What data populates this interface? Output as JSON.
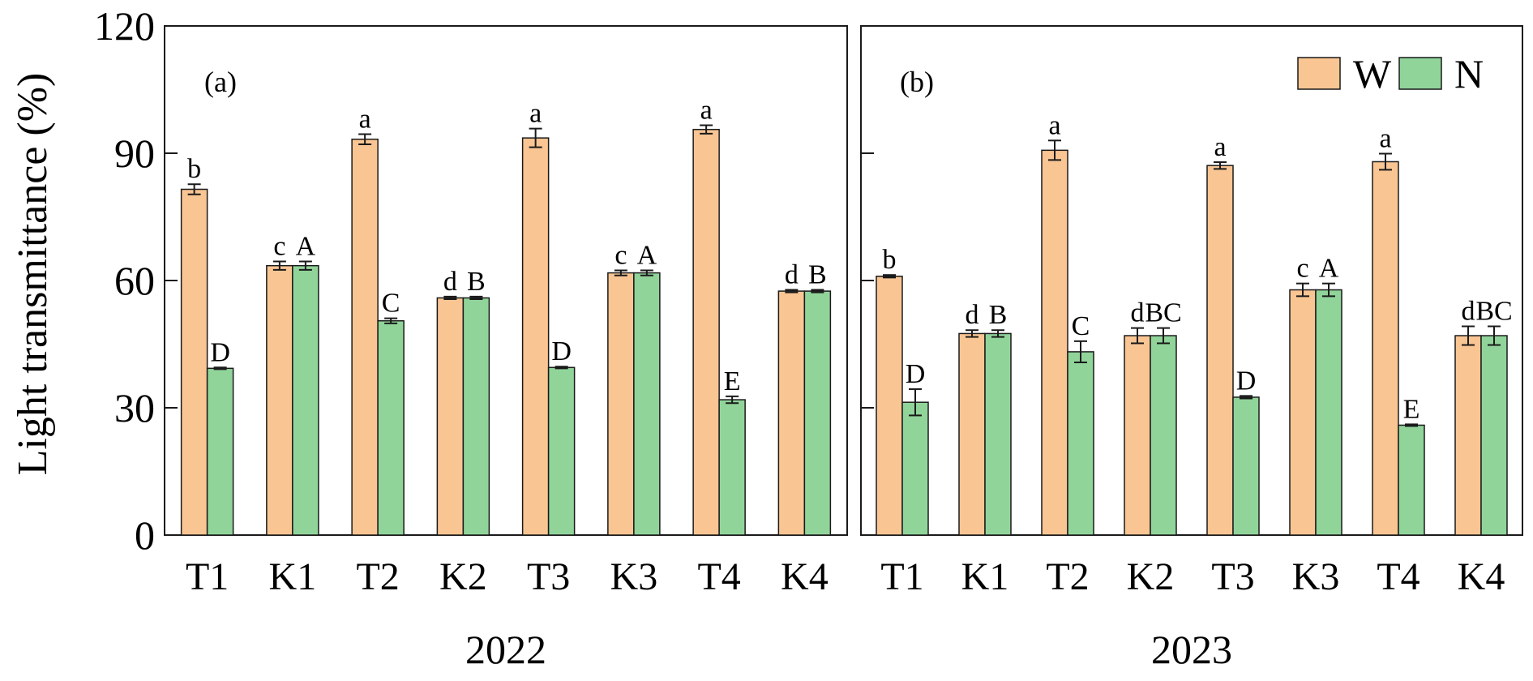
{
  "chart_data": {
    "type": "bar",
    "ylabel": "Light transmittance (%)",
    "ylim": [
      0,
      120
    ],
    "yticks": [
      0,
      30,
      60,
      90,
      120
    ],
    "legend": [
      {
        "key": "W",
        "label": "W",
        "color": "#f9c593"
      },
      {
        "key": "N",
        "label": "N",
        "color": "#90d49a"
      }
    ],
    "legend_position": "top-right of panel (b)",
    "panels": [
      {
        "label": "(a)",
        "xlabel": "2022",
        "categories": [
          "T1",
          "K1",
          "T2",
          "K2",
          "T3",
          "K3",
          "T4",
          "K4"
        ],
        "series": [
          {
            "name": "W",
            "values": [
              81.5,
              63.5,
              93.3,
              55.9,
              93.6,
              61.8,
              95.6,
              57.5
            ],
            "errors": [
              1.2,
              1.0,
              1.2,
              0.3,
              2.2,
              0.6,
              1.0,
              0.3
            ],
            "letters": [
              "b",
              "c",
              "a",
              "d",
              "a",
              "c",
              "a",
              "d"
            ]
          },
          {
            "name": "N",
            "values": [
              39.3,
              63.5,
              50.5,
              55.9,
              39.5,
              61.8,
              31.9,
              57.5
            ],
            "errors": [
              0.2,
              1.0,
              0.6,
              0.3,
              0.2,
              0.6,
              0.8,
              0.3
            ],
            "letters": [
              "D",
              "A",
              "C",
              "B",
              "D",
              "A",
              "E",
              "B"
            ]
          }
        ]
      },
      {
        "label": "(b)",
        "xlabel": "2023",
        "categories": [
          "T1",
          "K1",
          "T2",
          "K2",
          "T3",
          "K3",
          "T4",
          "K4"
        ],
        "series": [
          {
            "name": "W",
            "values": [
              61.0,
              47.5,
              90.7,
              47.0,
              87.1,
              57.8,
              88.0,
              47.0
            ],
            "errors": [
              0.3,
              0.8,
              2.3,
              1.8,
              0.8,
              1.5,
              1.9,
              2.2
            ],
            "letters": [
              "b",
              "d",
              "a",
              "d",
              "a",
              "c",
              "a",
              "d"
            ]
          },
          {
            "name": "N",
            "values": [
              31.3,
              47.5,
              43.2,
              47.0,
              32.5,
              57.8,
              25.9,
              47.0
            ],
            "errors": [
              3.1,
              0.8,
              2.5,
              1.8,
              0.3,
              1.5,
              0.2,
              2.2
            ],
            "letters": [
              "D",
              "B",
              "C",
              "BC",
              "D",
              "A",
              "E",
              "BC"
            ]
          }
        ]
      }
    ]
  }
}
